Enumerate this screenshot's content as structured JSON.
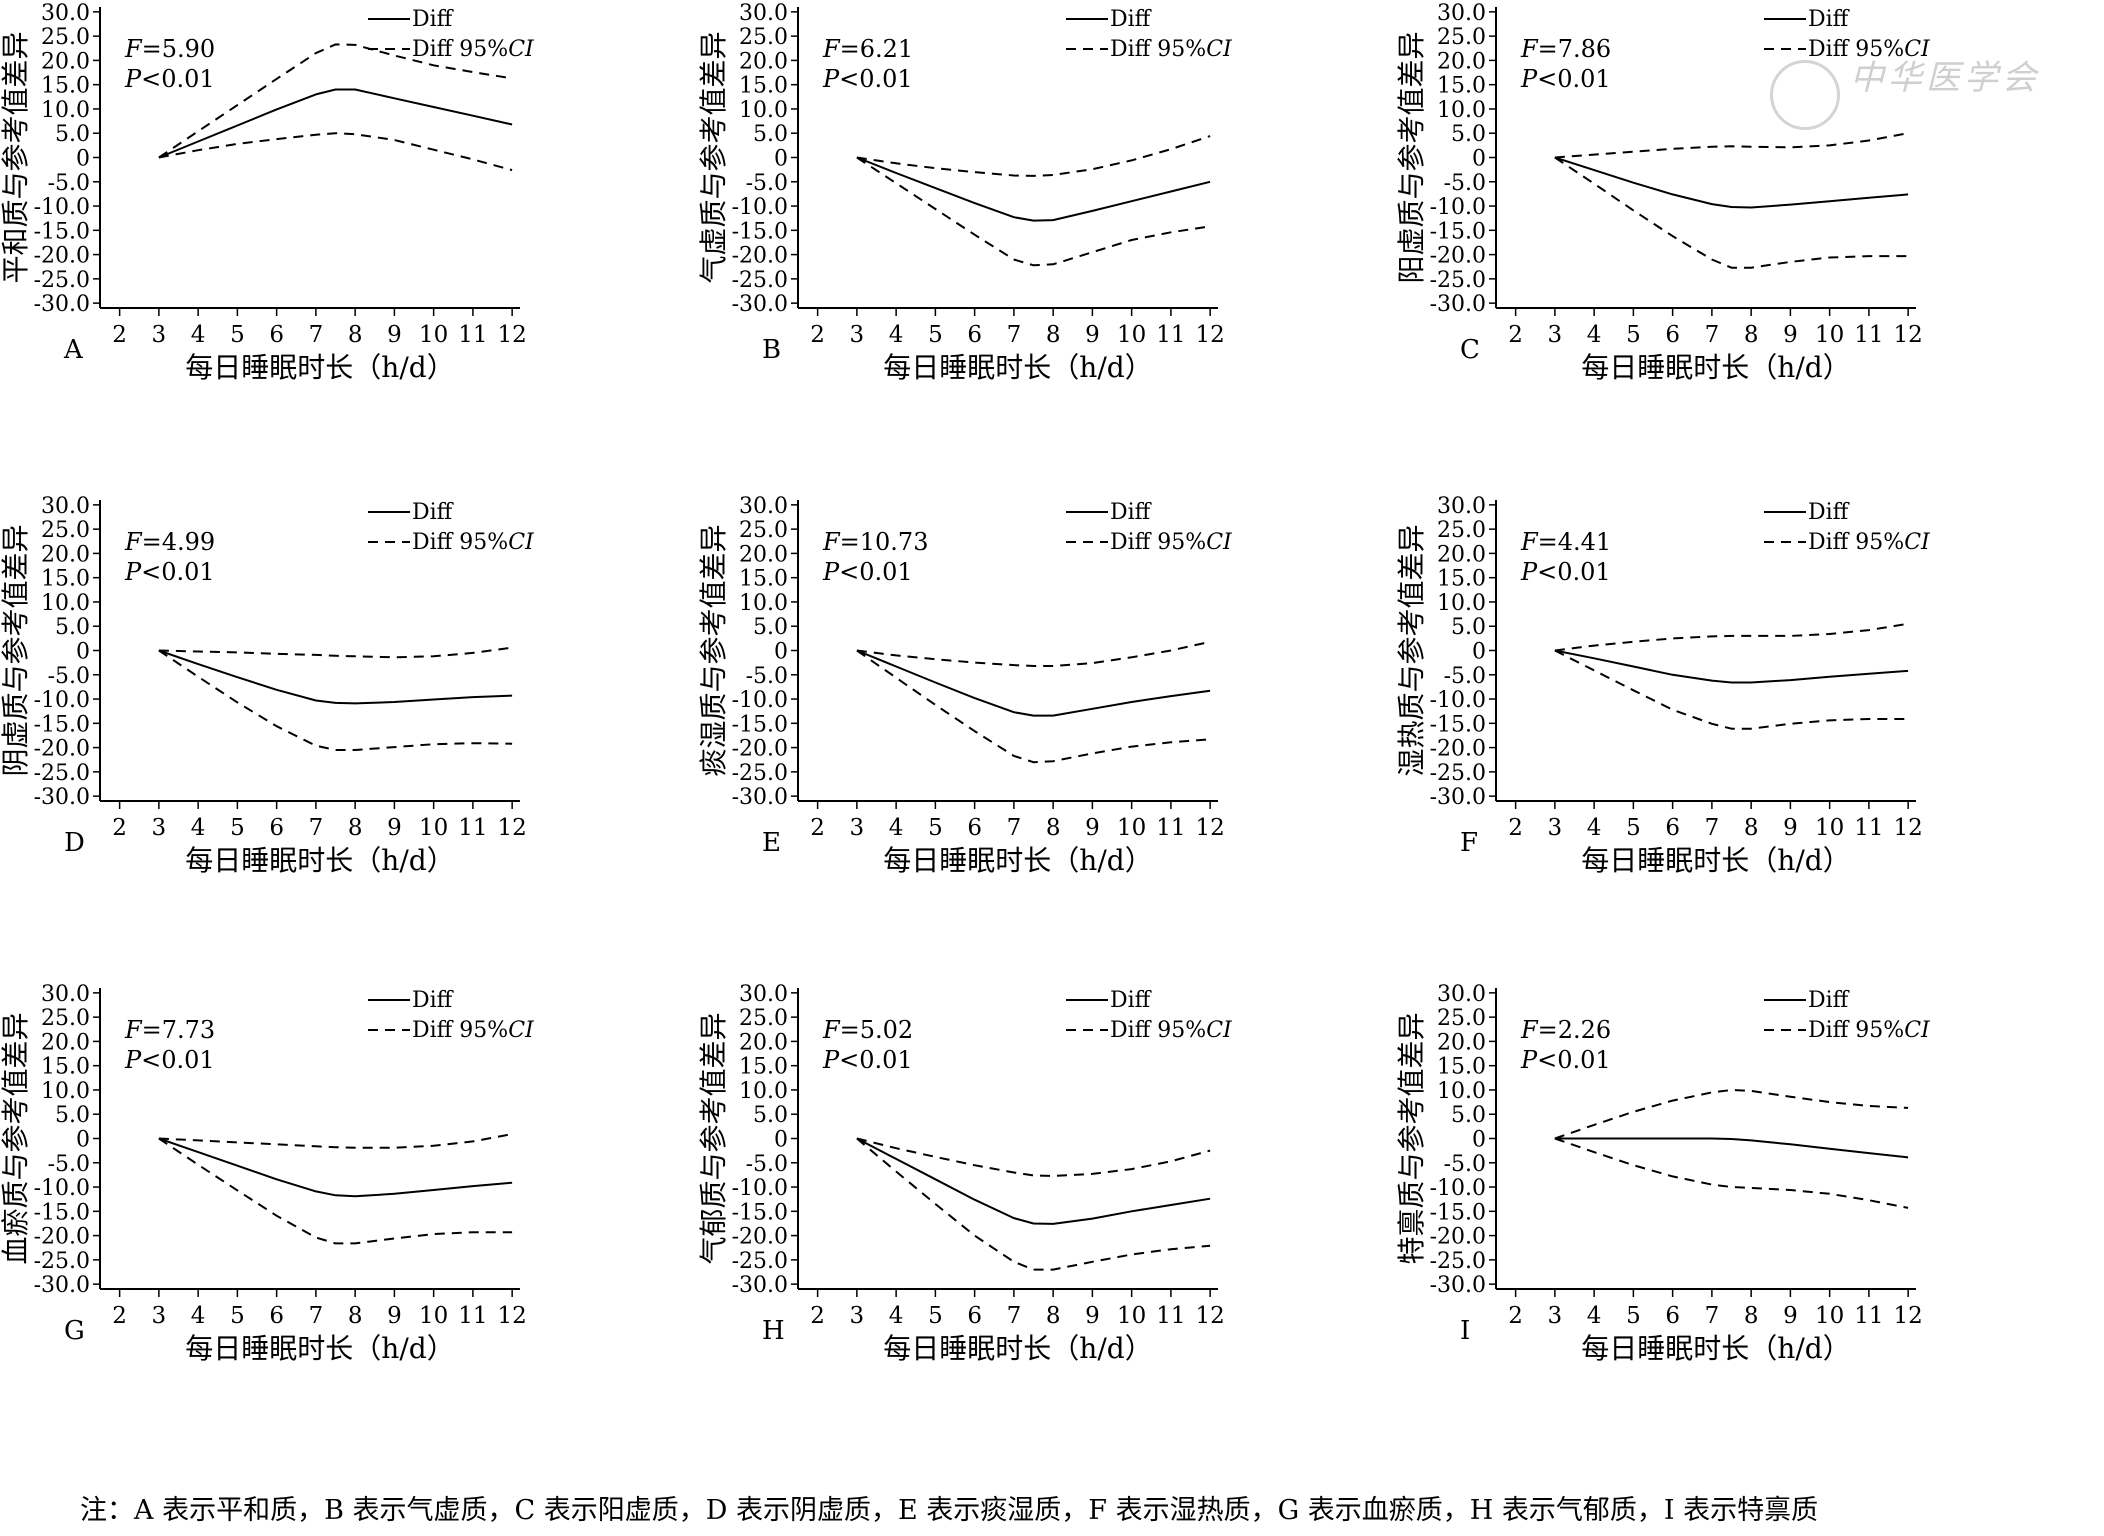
{
  "legend": {
    "solid": "Diff",
    "dashed": "Diff 95%CI"
  },
  "x_axis_label": "每日睡眠时长（h/d）",
  "x_ticks": [
    2,
    3,
    4,
    5,
    6,
    7,
    8,
    9,
    10,
    11,
    12
  ],
  "y_ticks": [
    "30.0",
    "25.0",
    "20.0",
    "15.0",
    "10.0",
    "5.0",
    "0",
    "-5.0",
    "-10.0",
    "-15.0",
    "-20.0",
    "-25.0",
    "-30.0"
  ],
  "watermark": "中华医学会",
  "note": "注：A 表示平和质，B 表示气虚质，C 表示阳虚质，D 表示阴虚质，E 表示痰湿质，F 表示湿热质，G 表示血瘀质，H 表示气郁质，I 表示特禀质",
  "chart_data": [
    {
      "panel": "A",
      "type": "line",
      "ylabel": "平和质与参考值差异",
      "stat_F": "5.90",
      "stat_P": "<0.01",
      "xlim": [
        1.5,
        12.2
      ],
      "ylim": [
        -31,
        31
      ],
      "x": [
        3,
        4,
        5,
        6,
        7,
        7.5,
        8,
        9,
        10,
        11,
        12
      ],
      "series": [
        {
          "name": "Diff",
          "values": [
            0,
            3.3,
            6.6,
            9.9,
            13,
            14,
            14,
            12.2,
            10.4,
            8.6,
            6.8
          ]
        },
        {
          "name": "Diff 95%CI",
          "style": "dashed",
          "values": [
            0,
            5.4,
            10.8,
            16.2,
            21.5,
            23.3,
            23.2,
            21,
            19,
            17.6,
            16.3
          ]
        },
        {
          "name": "Diff 95%CI",
          "style": "dashed",
          "values": [
            0,
            1.5,
            2.8,
            3.8,
            4.7,
            5,
            4.8,
            3.6,
            1.6,
            -0.4,
            -2.6
          ]
        }
      ]
    },
    {
      "panel": "B",
      "type": "line",
      "ylabel": "气虚质与参考值差异",
      "stat_F": "6.21",
      "stat_P": "<0.01",
      "xlim": [
        1.5,
        12.2
      ],
      "ylim": [
        -31,
        31
      ],
      "x": [
        3,
        4,
        5,
        6,
        7,
        7.5,
        8,
        9,
        10,
        11,
        12
      ],
      "series": [
        {
          "name": "Diff",
          "values": [
            0,
            -3.2,
            -6.3,
            -9.4,
            -12.3,
            -13,
            -12.9,
            -11,
            -9,
            -7,
            -5
          ]
        },
        {
          "name": "Diff 95%CI",
          "style": "dashed",
          "values": [
            0,
            -1.2,
            -2.2,
            -3,
            -3.7,
            -3.8,
            -3.6,
            -2.4,
            -0.6,
            1.7,
            4.4
          ]
        },
        {
          "name": "Diff 95%CI",
          "style": "dashed",
          "values": [
            0,
            -5.3,
            -10.6,
            -15.9,
            -21,
            -22.2,
            -22,
            -19.5,
            -17,
            -15.4,
            -14.2
          ]
        }
      ]
    },
    {
      "panel": "C",
      "type": "line",
      "ylabel": "阳虚质与参考值差异",
      "stat_F": "7.86",
      "stat_P": "<0.01",
      "xlim": [
        1.5,
        12.2
      ],
      "ylim": [
        -31,
        31
      ],
      "x": [
        3,
        4,
        5,
        6,
        7,
        7.5,
        8,
        9,
        10,
        11,
        12
      ],
      "series": [
        {
          "name": "Diff",
          "values": [
            0,
            -2.6,
            -5.2,
            -7.6,
            -9.6,
            -10.2,
            -10.3,
            -9.7,
            -9,
            -8.3,
            -7.6
          ]
        },
        {
          "name": "Diff 95%CI",
          "style": "dashed",
          "values": [
            0,
            0.6,
            1.2,
            1.8,
            2.2,
            2.3,
            2.2,
            2.1,
            2.5,
            3.5,
            5
          ]
        },
        {
          "name": "Diff 95%CI",
          "style": "dashed",
          "values": [
            0,
            -5.4,
            -10.9,
            -16.2,
            -21,
            -22.7,
            -22.7,
            -21.5,
            -20.6,
            -20.3,
            -20.3
          ]
        }
      ]
    },
    {
      "panel": "D",
      "type": "line",
      "ylabel": "阴虚质与参考值差异",
      "stat_F": "4.99",
      "stat_P": "<0.01",
      "xlim": [
        1.5,
        12.2
      ],
      "ylim": [
        -31,
        31
      ],
      "x": [
        3,
        4,
        5,
        6,
        7,
        7.5,
        8,
        9,
        10,
        11,
        12
      ],
      "series": [
        {
          "name": "Diff",
          "values": [
            0,
            -2.8,
            -5.5,
            -8.1,
            -10.3,
            -10.8,
            -10.9,
            -10.6,
            -10.1,
            -9.6,
            -9.3
          ]
        },
        {
          "name": "Diff 95%CI",
          "style": "dashed",
          "values": [
            0,
            -0.2,
            -0.4,
            -0.7,
            -0.9,
            -1.1,
            -1.2,
            -1.4,
            -1.2,
            -0.5,
            0.6
          ]
        },
        {
          "name": "Diff 95%CI",
          "style": "dashed",
          "values": [
            0,
            -5.4,
            -10.7,
            -15.6,
            -19.6,
            -20.5,
            -20.5,
            -19.9,
            -19.3,
            -19.1,
            -19.2
          ]
        }
      ]
    },
    {
      "panel": "E",
      "type": "line",
      "ylabel": "痰湿质与参考值差异",
      "stat_F": "10.73",
      "stat_P": "<0.01",
      "xlim": [
        1.5,
        12.2
      ],
      "ylim": [
        -31,
        31
      ],
      "x": [
        3,
        4,
        5,
        6,
        7,
        7.5,
        8,
        9,
        10,
        11,
        12
      ],
      "series": [
        {
          "name": "Diff",
          "values": [
            0,
            -3.3,
            -6.6,
            -9.8,
            -12.7,
            -13.4,
            -13.4,
            -12,
            -10.6,
            -9.4,
            -8.3
          ]
        },
        {
          "name": "Diff 95%CI",
          "style": "dashed",
          "values": [
            0,
            -1,
            -1.8,
            -2.5,
            -3,
            -3.2,
            -3.2,
            -2.6,
            -1.4,
            0,
            1.8
          ]
        },
        {
          "name": "Diff 95%CI",
          "style": "dashed",
          "values": [
            0,
            -5.6,
            -11.2,
            -16.6,
            -21.7,
            -23,
            -22.8,
            -21.2,
            -19.8,
            -18.9,
            -18.3
          ]
        }
      ]
    },
    {
      "panel": "F",
      "type": "line",
      "ylabel": "湿热质与参考值差异",
      "stat_F": "4.41",
      "stat_P": "<0.01",
      "xlim": [
        1.5,
        12.2
      ],
      "ylim": [
        -31,
        31
      ],
      "x": [
        3,
        4,
        5,
        6,
        7,
        7.5,
        8,
        9,
        10,
        11,
        12
      ],
      "series": [
        {
          "name": "Diff",
          "values": [
            0,
            -1.6,
            -3.3,
            -5,
            -6.2,
            -6.6,
            -6.6,
            -6.1,
            -5.4,
            -4.8,
            -4.2
          ]
        },
        {
          "name": "Diff 95%CI",
          "style": "dashed",
          "values": [
            0,
            1,
            1.8,
            2.5,
            2.9,
            3,
            3,
            3,
            3.4,
            4.2,
            5.5
          ]
        },
        {
          "name": "Diff 95%CI",
          "style": "dashed",
          "values": [
            0,
            -4.1,
            -8.2,
            -12.2,
            -15.1,
            -16.1,
            -16.1,
            -15.1,
            -14.4,
            -14.1,
            -14.1
          ]
        }
      ]
    },
    {
      "panel": "G",
      "type": "line",
      "ylabel": "血瘀质与参考值差异",
      "stat_F": "7.73",
      "stat_P": "<0.01",
      "xlim": [
        1.5,
        12.2
      ],
      "ylim": [
        -31,
        31
      ],
      "x": [
        3,
        4,
        5,
        6,
        7,
        7.5,
        8,
        9,
        10,
        11,
        12
      ],
      "series": [
        {
          "name": "Diff",
          "values": [
            0,
            -2.8,
            -5.6,
            -8.4,
            -10.9,
            -11.7,
            -11.9,
            -11.4,
            -10.6,
            -9.8,
            -9.1
          ]
        },
        {
          "name": "Diff 95%CI",
          "style": "dashed",
          "values": [
            0,
            -0.4,
            -0.8,
            -1.2,
            -1.6,
            -1.8,
            -1.9,
            -1.9,
            -1.5,
            -0.6,
            0.9
          ]
        },
        {
          "name": "Diff 95%CI",
          "style": "dashed",
          "values": [
            0,
            -5.4,
            -10.7,
            -15.9,
            -20.4,
            -21.6,
            -21.6,
            -20.6,
            -19.7,
            -19.3,
            -19.3
          ]
        }
      ]
    },
    {
      "panel": "H",
      "type": "line",
      "ylabel": "气郁质与参考值差异",
      "stat_F": "5.02",
      "stat_P": "<0.01",
      "xlim": [
        1.5,
        12.2
      ],
      "ylim": [
        -31,
        31
      ],
      "x": [
        3,
        4,
        5,
        6,
        7,
        7.5,
        8,
        9,
        10,
        11,
        12
      ],
      "series": [
        {
          "name": "Diff",
          "values": [
            0,
            -4.2,
            -8.4,
            -12.6,
            -16.4,
            -17.5,
            -17.6,
            -16.5,
            -15,
            -13.7,
            -12.4
          ]
        },
        {
          "name": "Diff 95%CI",
          "style": "dashed",
          "values": [
            0,
            -2,
            -3.8,
            -5.5,
            -7,
            -7.6,
            -7.7,
            -7.3,
            -6.3,
            -4.7,
            -2.5
          ]
        },
        {
          "name": "Diff 95%CI",
          "style": "dashed",
          "values": [
            0,
            -6.8,
            -13.5,
            -20,
            -25.4,
            -27,
            -27,
            -25.4,
            -23.9,
            -22.8,
            -22.1
          ]
        }
      ]
    },
    {
      "panel": "I",
      "type": "line",
      "ylabel": "特禀质与参考值差异",
      "stat_F": "2.26",
      "stat_P": "<0.01",
      "xlim": [
        1.5,
        12.2
      ],
      "ylim": [
        -31,
        31
      ],
      "x": [
        3,
        4,
        5,
        6,
        7,
        7.5,
        8,
        9,
        10,
        11,
        12
      ],
      "series": [
        {
          "name": "Diff",
          "values": [
            0,
            0,
            0,
            0,
            0,
            -0.1,
            -0.4,
            -1.2,
            -2.1,
            -3,
            -3.9
          ]
        },
        {
          "name": "Diff 95%CI",
          "style": "dashed",
          "values": [
            0,
            2.8,
            5.5,
            7.8,
            9.5,
            10,
            9.8,
            8.6,
            7.5,
            6.7,
            6.3
          ]
        },
        {
          "name": "Diff 95%CI",
          "style": "dashed",
          "values": [
            0,
            -2.8,
            -5.5,
            -7.8,
            -9.5,
            -10,
            -10.2,
            -10.6,
            -11.4,
            -12.7,
            -14.3
          ]
        }
      ]
    }
  ]
}
